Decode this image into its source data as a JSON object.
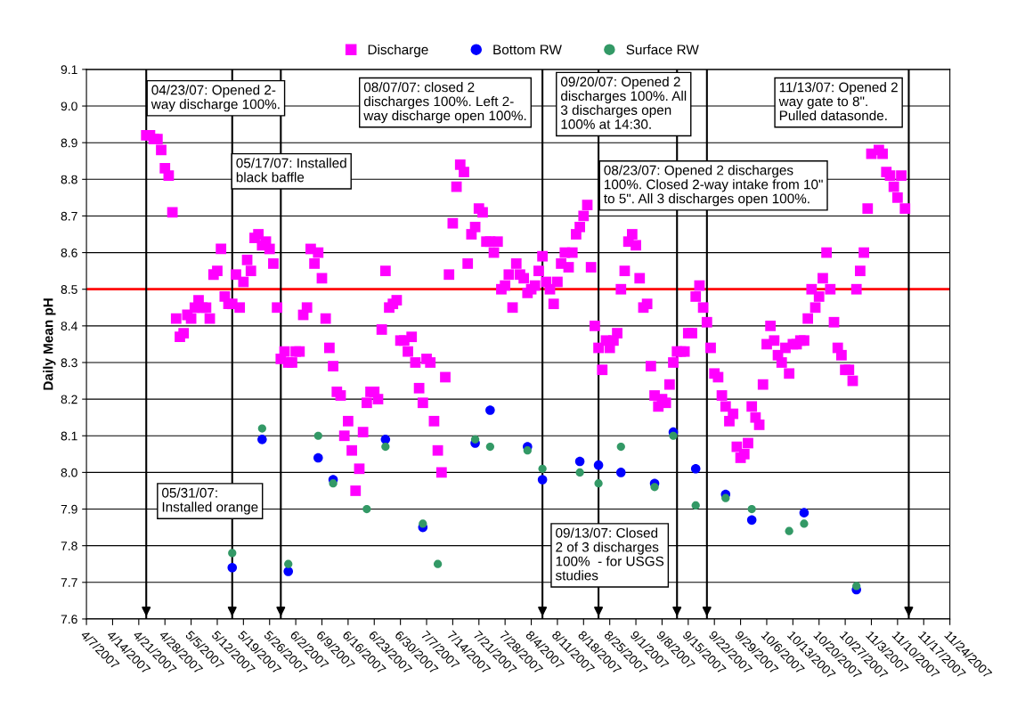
{
  "chart_data": {
    "type": "scatter",
    "ylabel": "Daily Mean pH",
    "xlim": [
      "2007-04-07",
      "2007-11-24"
    ],
    "ylim": [
      7.6,
      9.1
    ],
    "yticks": [
      7.6,
      7.7,
      7.8,
      7.9,
      {
        "value": 8.0,
        "label": "8.0"
      },
      8.1,
      8.2,
      8.3,
      8.4,
      8.5,
      8.6,
      8.7,
      8.8,
      8.9,
      {
        "value": 9.0,
        "label": "9.0"
      },
      9.1
    ],
    "xticks": [
      {
        "value": "2007-04-07",
        "label": "4/7/2007"
      },
      {
        "value": "2007-04-14",
        "label": "4/14/2007"
      },
      {
        "value": "2007-04-21",
        "label": "4/21/2007"
      },
      {
        "value": "2007-04-28",
        "label": "4/28/2007"
      },
      {
        "value": "2007-05-05",
        "label": "5/5/2007"
      },
      {
        "value": "2007-05-12",
        "label": "5/12/2007"
      },
      {
        "value": "2007-05-19",
        "label": "5/19/2007"
      },
      {
        "value": "2007-05-26",
        "label": "5/26/2007"
      },
      {
        "value": "2007-06-02",
        "label": "6/2/2007"
      },
      {
        "value": "2007-06-09",
        "label": "6/9/2007"
      },
      {
        "value": "2007-06-16",
        "label": "6/16/2007"
      },
      {
        "value": "2007-06-23",
        "label": "6/23/2007"
      },
      {
        "value": "2007-06-30",
        "label": "6/30/2007"
      },
      {
        "value": "2007-07-07",
        "label": "7/7/2007"
      },
      {
        "value": "2007-07-14",
        "label": "7/14/2007"
      },
      {
        "value": "2007-07-21",
        "label": "7/21/2007"
      },
      {
        "value": "2007-07-28",
        "label": "7/28/2007"
      },
      {
        "value": "2007-08-04",
        "label": "8/4/2007"
      },
      {
        "value": "2007-08-11",
        "label": "8/11/2007"
      },
      {
        "value": "2007-08-18",
        "label": "8/18/2007"
      },
      {
        "value": "2007-08-25",
        "label": "8/25/2007"
      },
      {
        "value": "2007-09-01",
        "label": "9/1/2007"
      },
      {
        "value": "2007-09-08",
        "label": "9/8/2007"
      },
      {
        "value": "2007-09-15",
        "label": "9/15/2007"
      },
      {
        "value": "2007-09-22",
        "label": "9/22/2007"
      },
      {
        "value": "2007-09-29",
        "label": "9/29/2007"
      },
      {
        "value": "2007-10-06",
        "label": "10/6/2007"
      },
      {
        "value": "2007-10-13",
        "label": "10/13/2007"
      },
      {
        "value": "2007-10-20",
        "label": "10/20/2007"
      },
      {
        "value": "2007-10-27",
        "label": "10/27/2007"
      },
      {
        "value": "2007-11-03",
        "label": "11/3/2007"
      },
      {
        "value": "2007-11-10",
        "label": "11/10/2007"
      },
      {
        "value": "2007-11-17",
        "label": "11/17/2007"
      },
      {
        "value": "2007-11-24",
        "label": "11/24/2007"
      }
    ],
    "grid": "y",
    "legend": "top",
    "series": [
      {
        "name": "Discharge",
        "color": "#ff00ff",
        "marker": "square",
        "x": [
          "2007-04-23",
          "2007-04-24",
          "2007-04-25",
          "2007-04-26",
          "2007-04-27",
          "2007-04-28",
          "2007-04-29",
          "2007-04-30",
          "2007-05-01",
          "2007-05-02",
          "2007-05-03",
          "2007-05-04",
          "2007-05-05",
          "2007-05-06",
          "2007-05-07",
          "2007-05-08",
          "2007-05-09",
          "2007-05-10",
          "2007-05-11",
          "2007-05-12",
          "2007-05-13",
          "2007-05-14",
          "2007-05-15",
          "2007-05-16",
          "2007-05-17",
          "2007-05-18",
          "2007-05-19",
          "2007-05-20",
          "2007-05-21",
          "2007-05-22",
          "2007-05-23",
          "2007-05-24",
          "2007-05-25",
          "2007-05-26",
          "2007-05-27",
          "2007-05-28",
          "2007-05-29",
          "2007-05-30",
          "2007-05-31",
          "2007-06-01",
          "2007-06-02",
          "2007-06-03",
          "2007-06-04",
          "2007-06-05",
          "2007-06-06",
          "2007-06-07",
          "2007-06-08",
          "2007-06-09",
          "2007-06-10",
          "2007-06-11",
          "2007-06-12",
          "2007-06-13",
          "2007-06-14",
          "2007-06-15",
          "2007-06-16",
          "2007-06-17",
          "2007-06-18",
          "2007-06-19",
          "2007-06-20",
          "2007-06-21",
          "2007-06-22",
          "2007-06-23",
          "2007-06-24",
          "2007-06-25",
          "2007-06-26",
          "2007-06-27",
          "2007-06-28",
          "2007-06-29",
          "2007-06-30",
          "2007-07-01",
          "2007-07-02",
          "2007-07-03",
          "2007-07-04",
          "2007-07-05",
          "2007-07-06",
          "2007-07-07",
          "2007-07-08",
          "2007-07-09",
          "2007-07-10",
          "2007-07-11",
          "2007-07-12",
          "2007-07-13",
          "2007-07-14",
          "2007-07-15",
          "2007-07-16",
          "2007-07-17",
          "2007-07-18",
          "2007-07-19",
          "2007-07-20",
          "2007-07-21",
          "2007-07-22",
          "2007-07-23",
          "2007-07-24",
          "2007-07-25",
          "2007-07-26",
          "2007-07-27",
          "2007-07-28",
          "2007-07-29",
          "2007-07-30",
          "2007-07-31",
          "2007-08-01",
          "2007-08-02",
          "2007-08-03",
          "2007-08-04",
          "2007-08-05",
          "2007-08-06",
          "2007-08-07",
          "2007-08-08",
          "2007-08-09",
          "2007-08-10",
          "2007-08-11",
          "2007-08-12",
          "2007-08-13",
          "2007-08-14",
          "2007-08-15",
          "2007-08-16",
          "2007-08-17",
          "2007-08-18",
          "2007-08-19",
          "2007-08-20",
          "2007-08-21",
          "2007-08-22",
          "2007-08-23",
          "2007-08-24",
          "2007-08-25",
          "2007-08-26",
          "2007-08-27",
          "2007-08-28",
          "2007-08-29",
          "2007-08-30",
          "2007-08-31",
          "2007-09-01",
          "2007-09-02",
          "2007-09-03",
          "2007-09-04",
          "2007-09-05",
          "2007-09-06",
          "2007-09-07",
          "2007-09-08",
          "2007-09-09",
          "2007-09-10",
          "2007-09-11",
          "2007-09-12",
          "2007-09-13",
          "2007-09-14",
          "2007-09-15",
          "2007-09-16",
          "2007-09-17",
          "2007-09-18",
          "2007-09-19",
          "2007-09-20",
          "2007-09-21",
          "2007-09-22",
          "2007-09-23",
          "2007-09-24",
          "2007-09-25",
          "2007-09-26",
          "2007-09-27",
          "2007-09-28",
          "2007-09-29",
          "2007-09-30",
          "2007-10-01",
          "2007-10-02",
          "2007-10-03",
          "2007-10-04",
          "2007-10-05",
          "2007-10-06",
          "2007-10-07",
          "2007-10-08",
          "2007-10-09",
          "2007-10-10",
          "2007-10-11",
          "2007-10-12",
          "2007-10-13",
          "2007-10-14",
          "2007-10-15",
          "2007-10-16",
          "2007-10-17",
          "2007-10-18",
          "2007-10-19",
          "2007-10-20",
          "2007-10-21",
          "2007-10-22",
          "2007-10-23",
          "2007-10-24",
          "2007-10-25",
          "2007-10-26",
          "2007-10-27",
          "2007-10-28",
          "2007-10-29",
          "2007-10-30",
          "2007-10-31",
          "2007-11-01",
          "2007-11-02",
          "2007-11-03",
          "2007-11-05",
          "2007-11-06",
          "2007-11-07",
          "2007-11-08",
          "2007-11-09",
          "2007-11-10",
          "2007-11-11",
          "2007-11-12"
        ],
        "values": [
          8.92,
          8.92,
          8.91,
          8.91,
          8.88,
          8.83,
          8.81,
          8.71,
          8.42,
          8.37,
          8.38,
          8.43,
          8.42,
          8.45,
          8.47,
          8.45,
          8.45,
          8.42,
          8.54,
          8.55,
          8.61,
          8.48,
          8.46,
          8.46,
          8.54,
          8.45,
          8.52,
          8.58,
          8.55,
          8.64,
          8.65,
          8.62,
          8.63,
          8.61,
          8.57,
          8.45,
          8.31,
          8.33,
          8.3,
          8.3,
          8.33,
          8.33,
          8.43,
          8.45,
          8.61,
          8.57,
          8.6,
          8.53,
          8.42,
          8.34,
          8.29,
          8.22,
          8.21,
          8.1,
          8.14,
          8.06,
          7.95,
          8.01,
          8.11,
          8.19,
          8.22,
          8.22,
          8.2,
          8.39,
          8.55,
          8.45,
          8.46,
          8.47,
          8.36,
          8.36,
          8.33,
          8.37,
          8.3,
          8.23,
          8.19,
          8.31,
          8.3,
          8.14,
          8.06,
          8.0,
          8.26,
          8.54,
          8.68,
          8.78,
          8.84,
          8.82,
          8.57,
          8.65,
          8.67,
          8.72,
          8.71,
          8.63,
          8.63,
          8.6,
          8.63,
          8.5,
          8.51,
          8.54,
          8.45,
          8.57,
          8.54,
          8.53,
          8.49,
          8.5,
          8.51,
          8.55,
          8.59,
          8.52,
          8.5,
          8.46,
          8.52,
          8.57,
          8.6,
          8.56,
          8.6,
          8.65,
          8.67,
          8.7,
          8.73,
          8.56,
          8.4,
          8.34,
          8.28,
          8.36,
          8.34,
          8.36,
          8.38,
          8.5,
          8.55,
          8.63,
          8.65,
          8.62,
          8.53,
          8.45,
          8.46,
          8.29,
          8.21,
          8.18,
          8.2,
          8.19,
          8.24,
          8.3,
          8.33,
          8.33,
          8.33,
          8.38,
          8.38,
          8.48,
          8.51,
          8.45,
          8.41,
          8.34,
          8.27,
          8.26,
          8.21,
          8.18,
          8.14,
          8.16,
          8.07,
          8.04,
          8.05,
          8.08,
          8.18,
          8.15,
          8.13,
          8.24,
          8.35,
          8.4,
          8.36,
          8.32,
          8.3,
          8.34,
          8.27,
          8.35,
          8.35,
          8.36,
          8.36,
          8.42,
          8.5,
          8.45,
          8.48,
          8.53,
          8.6,
          8.5,
          8.41,
          8.34,
          8.32,
          8.28,
          8.28,
          8.25,
          8.5,
          8.55,
          8.6,
          8.72,
          8.87,
          8.88,
          8.87,
          8.82,
          8.81,
          8.78,
          8.75,
          8.81,
          8.72
        ]
      },
      {
        "name": "Bottom RW",
        "color": "#0000ff",
        "marker": "circle",
        "x": [
          "2007-05-16",
          "2007-05-24",
          "2007-05-31",
          "2007-06-08",
          "2007-06-12",
          "2007-06-26",
          "2007-07-06",
          "2007-07-20",
          "2007-07-24",
          "2007-08-03",
          "2007-08-07",
          "2007-08-17",
          "2007-08-22",
          "2007-08-28",
          "2007-09-06",
          "2007-09-11",
          "2007-09-17",
          "2007-09-25",
          "2007-10-02",
          "2007-10-16",
          "2007-10-30"
        ],
        "values": [
          7.74,
          8.09,
          7.73,
          8.04,
          7.98,
          8.09,
          7.85,
          8.08,
          8.17,
          8.07,
          7.98,
          8.03,
          8.02,
          8.0,
          7.97,
          8.11,
          8.01,
          7.94,
          7.87,
          7.89,
          7.68
        ]
      },
      {
        "name": "Surface RW",
        "color": "#339966",
        "marker": "circle",
        "x": [
          "2007-05-16",
          "2007-05-24",
          "2007-05-31",
          "2007-06-08",
          "2007-06-12",
          "2007-06-21",
          "2007-06-26",
          "2007-07-06",
          "2007-07-10",
          "2007-07-20",
          "2007-07-24",
          "2007-08-03",
          "2007-08-07",
          "2007-08-17",
          "2007-08-22",
          "2007-08-28",
          "2007-09-06",
          "2007-09-11",
          "2007-09-17",
          "2007-09-25",
          "2007-10-02",
          "2007-10-12",
          "2007-10-16",
          "2007-10-30"
        ],
        "values": [
          7.78,
          8.12,
          7.75,
          8.1,
          7.97,
          7.9,
          8.07,
          7.86,
          7.75,
          8.09,
          8.07,
          8.06,
          8.01,
          8.0,
          7.97,
          8.07,
          7.96,
          8.1,
          7.91,
          7.93,
          7.9,
          7.84,
          7.86,
          7.69
        ]
      }
    ],
    "ref_lines": [
      {
        "axis": "y",
        "value": 8.5,
        "color": "#ff0000"
      },
      {
        "axis": "x",
        "value": "2007-04-23",
        "color": "#000000"
      },
      {
        "axis": "x",
        "value": "2007-05-16",
        "color": "#000000"
      },
      {
        "axis": "x",
        "value": "2007-05-29",
        "color": "#000000"
      },
      {
        "axis": "x",
        "value": "2007-08-07",
        "color": "#000000"
      },
      {
        "axis": "x",
        "value": "2007-08-22",
        "color": "#000000"
      },
      {
        "axis": "x",
        "value": "2007-09-12",
        "color": "#000000"
      },
      {
        "axis": "x",
        "value": "2007-09-20",
        "color": "#000000"
      },
      {
        "axis": "x",
        "value": "2007-11-13",
        "color": "#000000"
      }
    ],
    "annotations": [
      "04/23/07: Opened 2-\nway discharge 100%.",
      "05/17/07: Installed\nblack baffle",
      "05/31/07:\nInstalled orange",
      "08/07/07: closed 2\ndischarges 100%. Left 2-\nway discharge open 100%.",
      "09/20/07: Opened 2\ndischarges 100%. All\n3 discharges open\n100% at 14:30.",
      "08/23/07: Opened 2 discharges\n100%. Closed 2-way intake from 10\"\nto 5\". All 3 discharges open 100%.",
      "09/13/07: Closed\n2 of 3 discharges\n100%  - for USGS\nstudies",
      "11/13/07: Opened 2\nway gate to 8\".\nPulled datasonde."
    ]
  }
}
